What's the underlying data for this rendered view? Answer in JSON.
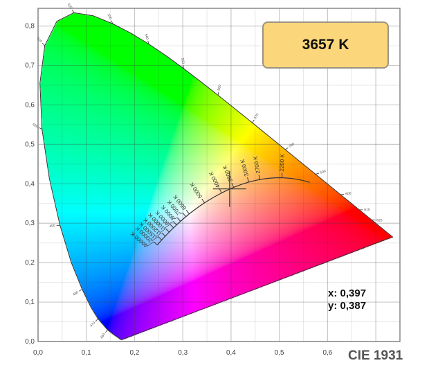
{
  "chart_data": {
    "type": "scatter",
    "title": "CIE 1931",
    "xlim": [
      0,
      0.75
    ],
    "ylim": [
      0,
      0.845
    ],
    "grid": true,
    "x_ticks": [
      "0,0",
      "0,1",
      "0,2",
      "0,3",
      "0,4",
      "0,5",
      "0,6"
    ],
    "x_tick_values": [
      0,
      0.1,
      0.2,
      0.3,
      0.4,
      0.5,
      0.6
    ],
    "y_ticks": [
      "0,0",
      "0,1",
      "0,2",
      "0,3",
      "0,4",
      "0,5",
      "0,6",
      "0,7",
      "0,8"
    ],
    "y_tick_values": [
      0,
      0.1,
      0.2,
      0.3,
      0.4,
      0.5,
      0.6,
      0.7,
      0.8
    ],
    "spectral_locus": [
      {
        "nm": 380,
        "x": 0.1741,
        "y": 0.005
      },
      {
        "nm": 420,
        "x": 0.1714,
        "y": 0.0051
      },
      {
        "nm": 450,
        "x": 0.1566,
        "y": 0.0177
      },
      {
        "nm": 460,
        "x": 0.144,
        "y": 0.0297
      },
      {
        "nm": 470,
        "x": 0.1241,
        "y": 0.0578
      },
      {
        "nm": 475,
        "x": 0.1096,
        "y": 0.0868
      },
      {
        "nm": 480,
        "x": 0.0913,
        "y": 0.1327
      },
      {
        "nm": 485,
        "x": 0.0687,
        "y": 0.2007
      },
      {
        "nm": 490,
        "x": 0.0454,
        "y": 0.295
      },
      {
        "nm": 495,
        "x": 0.0235,
        "y": 0.4127
      },
      {
        "nm": 500,
        "x": 0.0082,
        "y": 0.5384
      },
      {
        "nm": 505,
        "x": 0.0039,
        "y": 0.6548
      },
      {
        "nm": 510,
        "x": 0.0139,
        "y": 0.7502
      },
      {
        "nm": 515,
        "x": 0.0389,
        "y": 0.812
      },
      {
        "nm": 520,
        "x": 0.0743,
        "y": 0.8338
      },
      {
        "nm": 525,
        "x": 0.1142,
        "y": 0.8262
      },
      {
        "nm": 530,
        "x": 0.1547,
        "y": 0.8059
      },
      {
        "nm": 535,
        "x": 0.1929,
        "y": 0.7816
      },
      {
        "nm": 540,
        "x": 0.2296,
        "y": 0.7543
      },
      {
        "nm": 545,
        "x": 0.2658,
        "y": 0.7243
      },
      {
        "nm": 550,
        "x": 0.3016,
        "y": 0.6923
      },
      {
        "nm": 555,
        "x": 0.3373,
        "y": 0.6589
      },
      {
        "nm": 560,
        "x": 0.3731,
        "y": 0.6245
      },
      {
        "nm": 565,
        "x": 0.4087,
        "y": 0.5896
      },
      {
        "nm": 570,
        "x": 0.4441,
        "y": 0.5547
      },
      {
        "nm": 575,
        "x": 0.4788,
        "y": 0.5202
      },
      {
        "nm": 580,
        "x": 0.5125,
        "y": 0.4866
      },
      {
        "nm": 585,
        "x": 0.5448,
        "y": 0.4544
      },
      {
        "nm": 590,
        "x": 0.5752,
        "y": 0.4242
      },
      {
        "nm": 595,
        "x": 0.6029,
        "y": 0.3965
      },
      {
        "nm": 600,
        "x": 0.627,
        "y": 0.3725
      },
      {
        "nm": 610,
        "x": 0.6658,
        "y": 0.334
      },
      {
        "nm": 620,
        "x": 0.6915,
        "y": 0.3083
      },
      {
        "nm": 630,
        "x": 0.7079,
        "y": 0.292
      },
      {
        "nm": 640,
        "x": 0.719,
        "y": 0.2809
      },
      {
        "nm": 700,
        "x": 0.7347,
        "y": 0.2653
      }
    ],
    "wavelength_labels": [
      "460",
      "470",
      "480",
      "490",
      "500",
      "510",
      "520",
      "530",
      "540",
      "550",
      "560",
      "570",
      "580",
      "590",
      "600",
      "610",
      "620"
    ],
    "wavelength_label_nm": [
      460,
      470,
      480,
      490,
      500,
      510,
      520,
      530,
      540,
      550,
      560,
      570,
      580,
      590,
      600,
      610,
      620
    ],
    "planckian_locus": {
      "cct_values": [
        2200,
        2700,
        3000,
        3500,
        4000,
        5000,
        6500,
        7000,
        8000,
        9000,
        10000,
        12000,
        15000,
        20000,
        40000
      ],
      "labels": [
        "2200 K",
        "2700 K",
        "3000 K",
        "3500 K",
        "4000 K",
        "5000 K",
        "6500 K",
        "7000 K",
        "8000 K",
        "9000 K",
        "10000 K",
        "12000 K",
        "15000 K",
        "20000 K",
        "40000 K"
      ]
    },
    "point": {
      "x": 0.397,
      "y": 0.387
    },
    "annotations": {
      "cct": "3657 K",
      "x_readout": "x: 0,397",
      "y_readout": "y: 0,387"
    }
  }
}
